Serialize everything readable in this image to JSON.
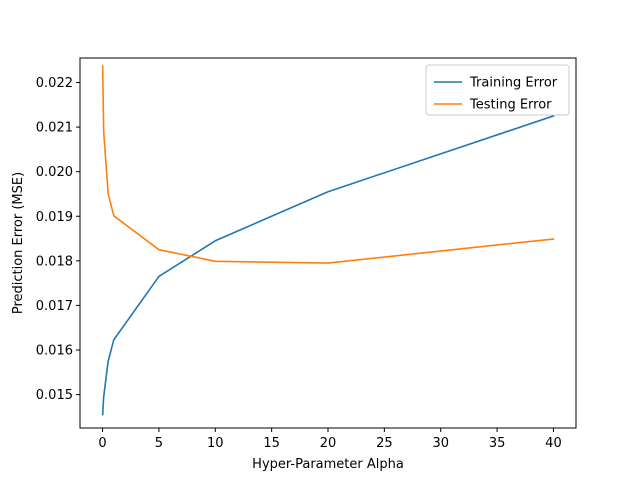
{
  "chart_data": {
    "type": "line",
    "title": "",
    "xlabel": "Hyper-Parameter Alpha",
    "ylabel": "Prediction Error (MSE)",
    "xlim": [
      -2,
      42
    ],
    "ylim": [
      0.01425,
      0.02255
    ],
    "xticks": [
      0,
      5,
      10,
      15,
      20,
      25,
      30,
      35,
      40
    ],
    "yticks": [
      0.015,
      0.016,
      0.017,
      0.018,
      0.019,
      0.02,
      0.021,
      0.022
    ],
    "ytick_labels": [
      "0.015",
      "0.016",
      "0.017",
      "0.018",
      "0.019",
      "0.020",
      "0.021",
      "0.022"
    ],
    "grid": false,
    "legend_position": "top-right",
    "series": [
      {
        "name": "Training Error",
        "color": "#1f77b4",
        "x": [
          0.01,
          0.1,
          0.5,
          1,
          5,
          10,
          20,
          40
        ],
        "y": [
          0.01455,
          0.01495,
          0.01575,
          0.01623,
          0.01765,
          0.01845,
          0.01955,
          0.02125
        ]
      },
      {
        "name": "Testing Error",
        "color": "#ff7f0e",
        "x": [
          0.01,
          0.1,
          0.5,
          1,
          5,
          10,
          20,
          40
        ],
        "y": [
          0.02237,
          0.0209,
          0.0195,
          0.01901,
          0.01825,
          0.01799,
          0.01795,
          0.01849
        ]
      }
    ]
  }
}
